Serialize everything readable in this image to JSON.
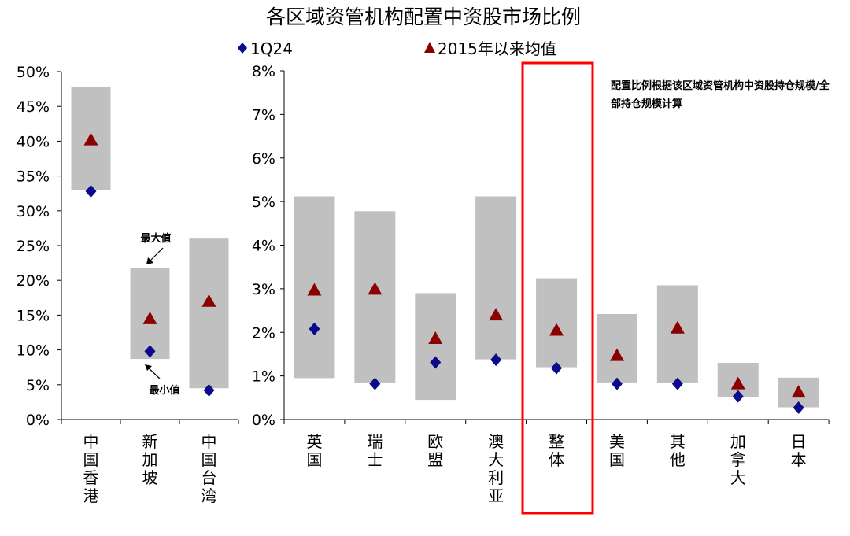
{
  "chart_data": {
    "type": "range-marker",
    "title": "各区域资管机构配置中资股市场比例",
    "legend": [
      {
        "name": "1Q24",
        "marker": "diamond",
        "color": "#0a0a8a"
      },
      {
        "name": "2015年以来均值",
        "marker": "triangle",
        "color": "#8b0000"
      }
    ],
    "range_color": "#c0c0c0",
    "highlight_color": "#ff0000",
    "note": "配置比例根据该区域资管机构中资股持仓规模/全部持仓规模计算",
    "annotations": {
      "max": "最大值",
      "min": "最小值"
    },
    "panels": [
      {
        "name": "left",
        "ylim": [
          0,
          50
        ],
        "ytick_step": 5,
        "ytick_labels": [
          "0%",
          "5%",
          "10%",
          "15%",
          "20%",
          "25%",
          "30%",
          "35%",
          "40%",
          "45%",
          "50%"
        ],
        "categories": [
          {
            "label": "中国香港",
            "min": 33.0,
            "max": 47.8,
            "mean": 40.2,
            "q1_24": 32.8
          },
          {
            "label": "新加坡",
            "min": 8.7,
            "max": 21.8,
            "mean": 14.5,
            "q1_24": 9.8
          },
          {
            "label": "中国台湾",
            "min": 4.5,
            "max": 26.0,
            "mean": 17.0,
            "q1_24": 4.2
          }
        ]
      },
      {
        "name": "right",
        "ylim": [
          0,
          8
        ],
        "ytick_step": 1,
        "ytick_labels": [
          "0%",
          "1%",
          "2%",
          "3%",
          "4%",
          "5%",
          "6%",
          "7%",
          "8%"
        ],
        "highlight_category": "整体",
        "categories": [
          {
            "label": "英国",
            "min": 0.95,
            "max": 5.12,
            "mean": 2.97,
            "q1_24": 2.08
          },
          {
            "label": "瑞士",
            "min": 0.85,
            "max": 4.78,
            "mean": 2.99,
            "q1_24": 0.82
          },
          {
            "label": "欧盟",
            "min": 0.45,
            "max": 2.9,
            "mean": 1.86,
            "q1_24": 1.31
          },
          {
            "label": "澳大利亚",
            "min": 1.38,
            "max": 5.12,
            "mean": 2.4,
            "q1_24": 1.37
          },
          {
            "label": "整体",
            "min": 1.2,
            "max": 3.24,
            "mean": 2.05,
            "q1_24": 1.18
          },
          {
            "label": "美国",
            "min": 0.85,
            "max": 2.42,
            "mean": 1.47,
            "q1_24": 0.82
          },
          {
            "label": "其他",
            "min": 0.85,
            "max": 3.08,
            "mean": 2.1,
            "q1_24": 0.82
          },
          {
            "label": "加拿大",
            "min": 0.52,
            "max": 1.3,
            "mean": 0.82,
            "q1_24": 0.53
          },
          {
            "label": "日本",
            "min": 0.28,
            "max": 0.96,
            "mean": 0.63,
            "q1_24": 0.27
          }
        ]
      }
    ]
  }
}
